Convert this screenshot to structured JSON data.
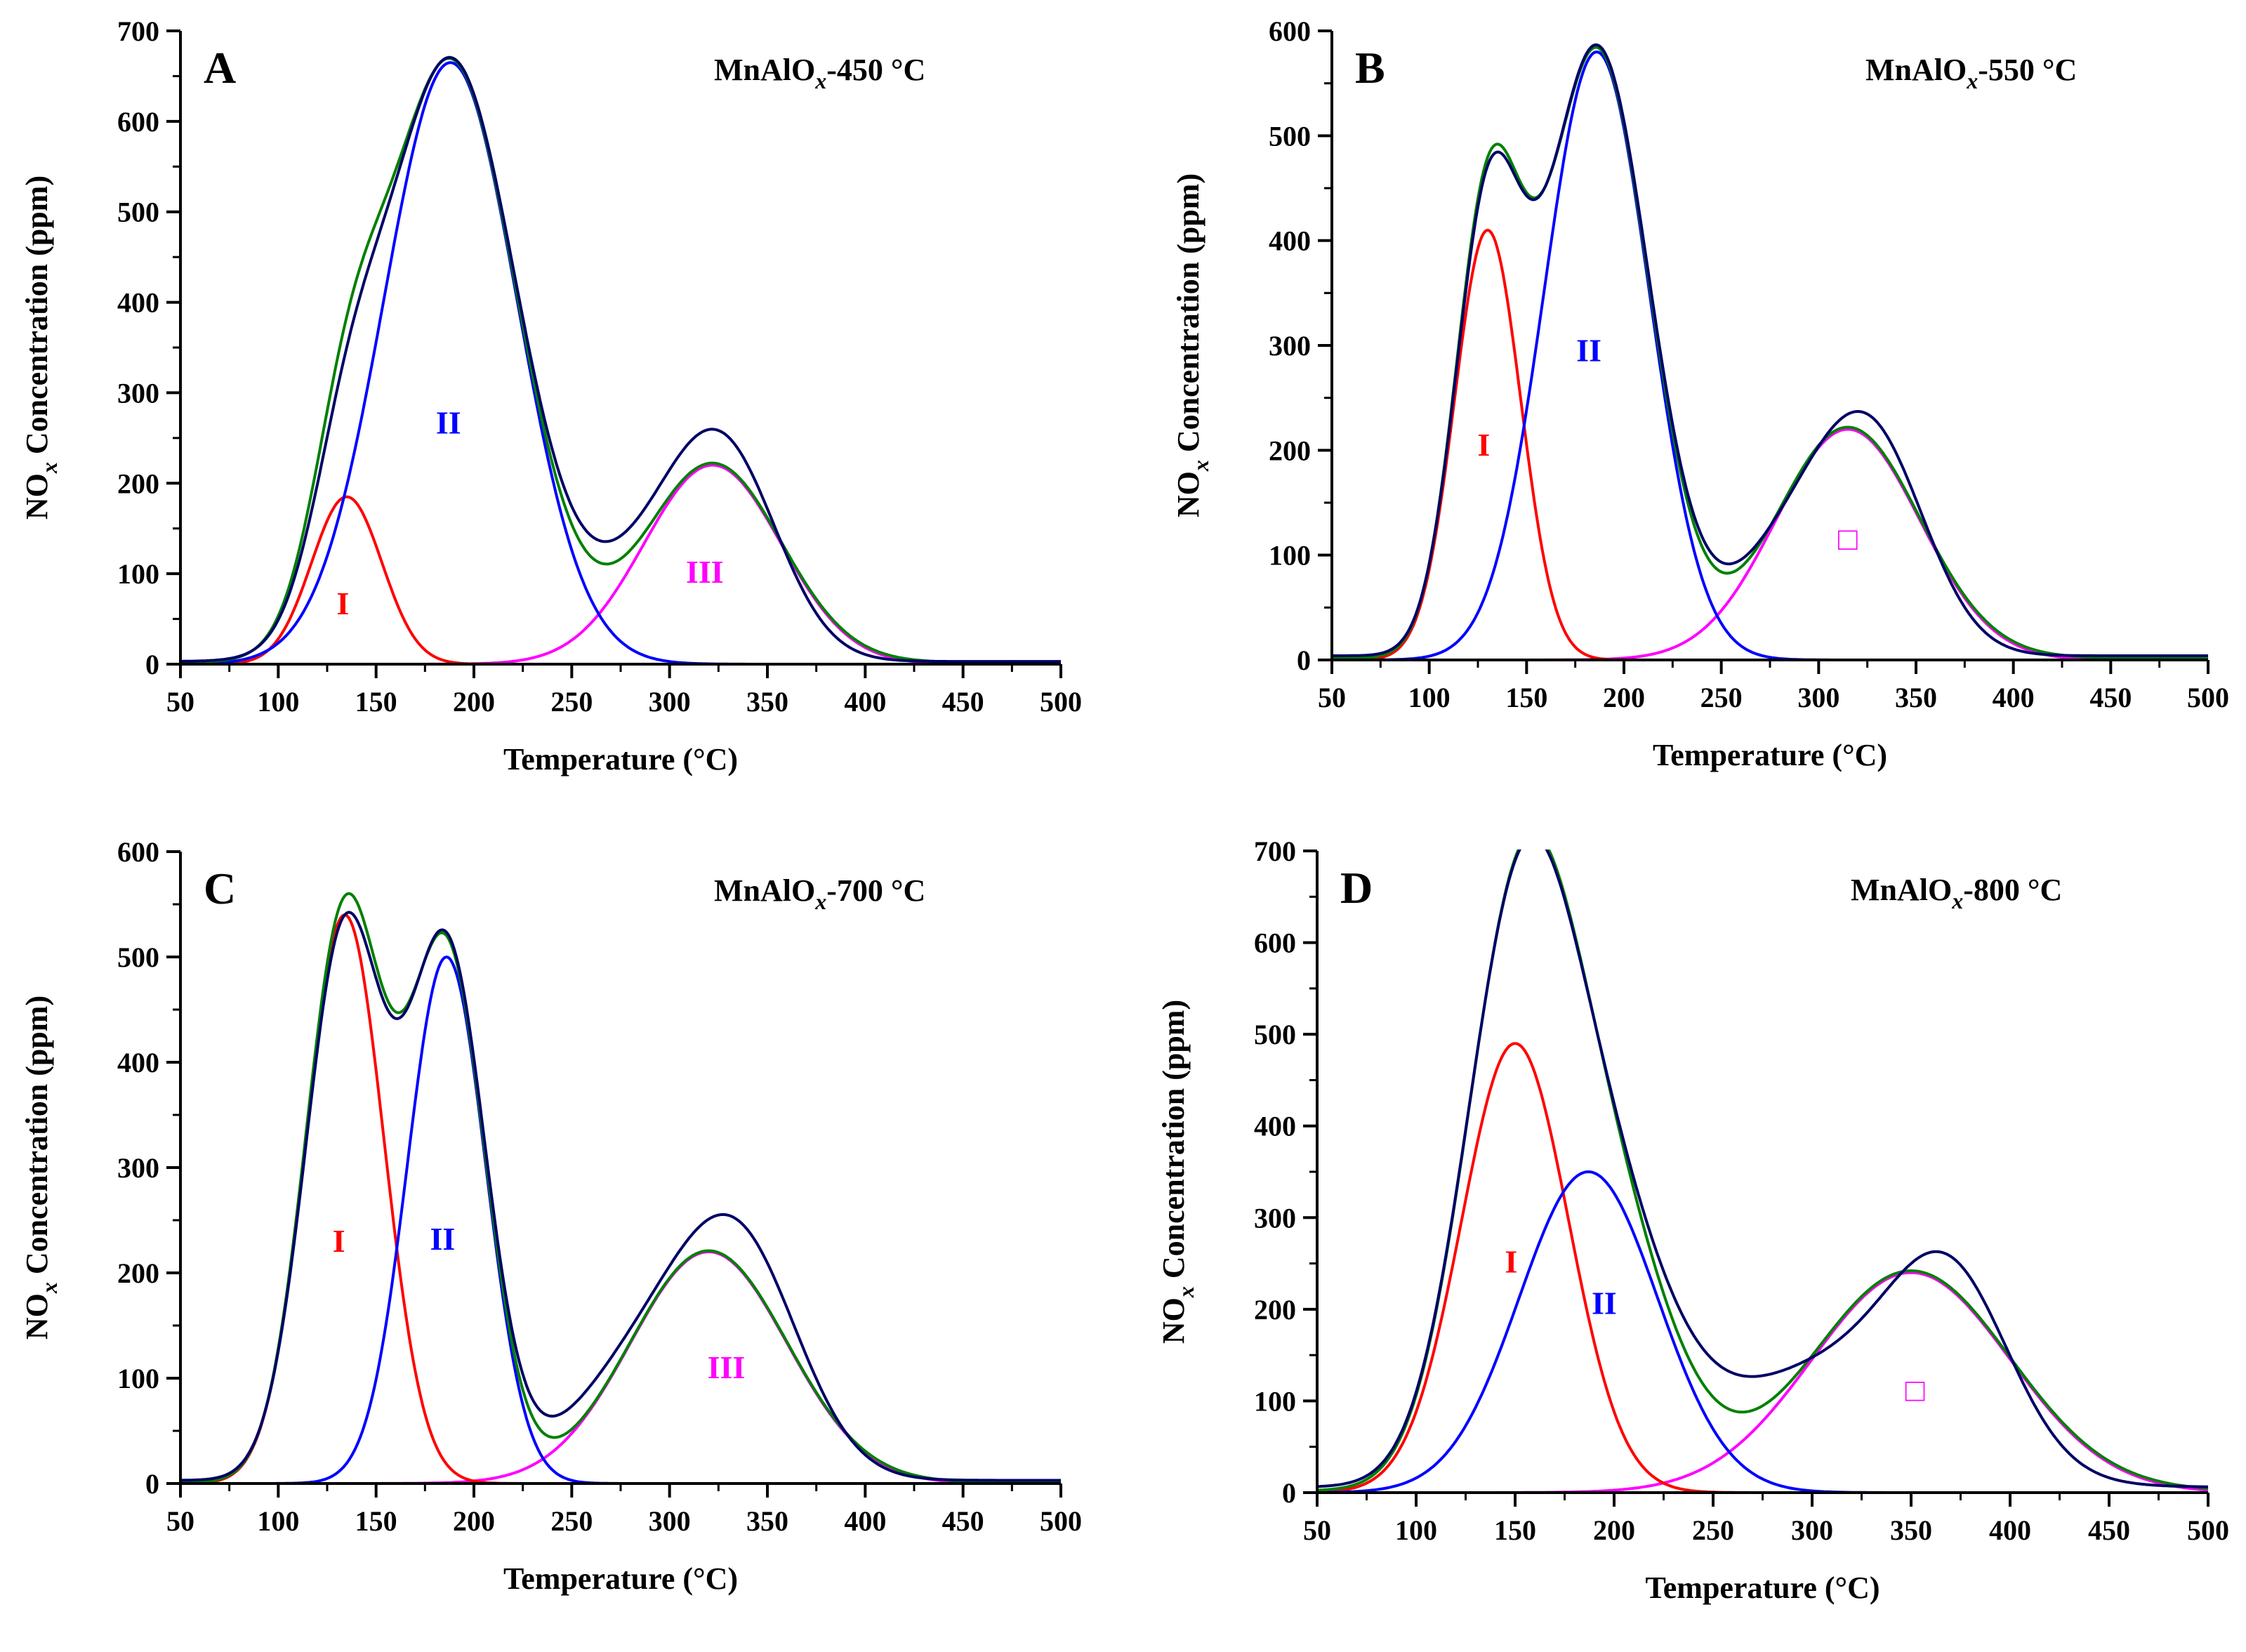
{
  "figure": {
    "x_axis_label": "Temperature (°C)",
    "y_axis_label_pre": "NO",
    "y_axis_label_sub": "x",
    "y_axis_label_post": " Concentration (ppm)",
    "xlim": [
      50,
      500
    ],
    "x_ticks": [
      50,
      100,
      150,
      200,
      250,
      300,
      350,
      400,
      450,
      500
    ],
    "colors": {
      "peak_I": "#ff0000",
      "peak_II": "#0000ff",
      "peak_III": "#ff00ff",
      "fit_sum": "#008000",
      "experimental": "#000066"
    }
  },
  "chart_data": [
    {
      "type": "line",
      "panel": "A",
      "title_pre": "MnAlO",
      "title_sub": "x",
      "title_post": "-450 °C",
      "xlabel": "Temperature (°C)",
      "ylabel": "NOx Concentration (ppm)",
      "ylim": [
        0,
        700
      ],
      "y_ticks": [
        0,
        100,
        200,
        300,
        400,
        500,
        600,
        700
      ],
      "peak_labels": [
        {
          "text": "I",
          "peak": "I",
          "x": 133,
          "y": 55
        },
        {
          "text": "II",
          "peak": "II",
          "x": 187,
          "y": 255
        },
        {
          "text": "III",
          "peak": "III",
          "x": 318,
          "y": 90
        }
      ],
      "series": [
        {
          "name": "Peak I",
          "role": "peak_I",
          "gaussians": [
            {
              "a": 185,
              "c": 135,
              "w": 18
            }
          ]
        },
        {
          "name": "Peak II",
          "role": "peak_II",
          "gaussians": [
            {
              "a": 665,
              "c": 188,
              "w": 34
            }
          ]
        },
        {
          "name": "Peak III",
          "role": "peak_III",
          "gaussians": [
            {
              "a": 220,
              "c": 322,
              "w": 35
            }
          ]
        },
        {
          "name": "Fit sum",
          "role": "fit_sum",
          "baseline": 2,
          "gaussians": [
            {
              "a": 185,
              "c": 135,
              "w": 18
            },
            {
              "a": 665,
              "c": 188,
              "w": 34
            },
            {
              "a": 220,
              "c": 322,
              "w": 35
            }
          ]
        },
        {
          "name": "Experimental",
          "role": "experimental",
          "baseline": 3,
          "gaussians": [
            {
              "a": 150,
              "c": 135,
              "w": 18
            },
            {
              "a": 665,
              "c": 188,
              "w": 34
            },
            {
              "a": 120,
              "c": 300,
              "w": 35
            },
            {
              "a": 165,
              "c": 330,
              "w": 27
            }
          ]
        }
      ]
    },
    {
      "type": "line",
      "panel": "B",
      "title_pre": "MnAlO",
      "title_sub": "x",
      "title_post": "-550 °C",
      "xlabel": "Temperature (°C)",
      "ylabel": "NOx Concentration (ppm)",
      "ylim": [
        0,
        600
      ],
      "y_ticks": [
        0,
        100,
        200,
        300,
        400,
        500,
        600
      ],
      "peak_labels": [
        {
          "text": "I",
          "peak": "I",
          "x": 128,
          "y": 195
        },
        {
          "text": "II",
          "peak": "II",
          "x": 182,
          "y": 285
        },
        {
          "text": "□",
          "peak": "III",
          "x": 315,
          "y": 105
        }
      ],
      "series": [
        {
          "name": "Peak I",
          "role": "peak_I",
          "gaussians": [
            {
              "a": 410,
              "c": 130,
              "w": 17
            }
          ]
        },
        {
          "name": "Peak II",
          "role": "peak_II",
          "gaussians": [
            {
              "a": 580,
              "c": 186,
              "w": 27
            }
          ]
        },
        {
          "name": "Peak III",
          "role": "peak_III",
          "gaussians": [
            {
              "a": 220,
              "c": 315,
              "w": 37
            }
          ]
        },
        {
          "name": "Fit sum",
          "role": "fit_sum",
          "baseline": 2,
          "gaussians": [
            {
              "a": 410,
              "c": 130,
              "w": 17
            },
            {
              "a": 580,
              "c": 186,
              "w": 27
            },
            {
              "a": 220,
              "c": 315,
              "w": 37
            }
          ]
        },
        {
          "name": "Experimental",
          "role": "experimental",
          "baseline": 4,
          "gaussians": [
            {
              "a": 400,
              "c": 130,
              "w": 17
            },
            {
              "a": 580,
              "c": 186,
              "w": 27
            },
            {
              "a": 120,
              "c": 295,
              "w": 35
            },
            {
              "a": 150,
              "c": 330,
              "w": 27
            }
          ]
        }
      ]
    },
    {
      "type": "line",
      "panel": "C",
      "title_pre": "MnAlO",
      "title_sub": "x",
      "title_post": "-700 °C",
      "xlabel": "Temperature (°C)",
      "ylabel": "NOx Concentration (ppm)",
      "ylim": [
        0,
        600
      ],
      "y_ticks": [
        0,
        100,
        200,
        300,
        400,
        500,
        600
      ],
      "peak_labels": [
        {
          "text": "I",
          "peak": "I",
          "x": 131,
          "y": 220
        },
        {
          "text": "II",
          "peak": "II",
          "x": 184,
          "y": 222
        },
        {
          "text": "III",
          "peak": "III",
          "x": 329,
          "y": 100
        }
      ],
      "series": [
        {
          "name": "Peak I",
          "role": "peak_I",
          "gaussians": [
            {
              "a": 540,
              "c": 134,
              "w": 20
            }
          ]
        },
        {
          "name": "Peak II",
          "role": "peak_II",
          "gaussians": [
            {
              "a": 500,
              "c": 186,
              "w": 20
            }
          ]
        },
        {
          "name": "Peak III",
          "role": "peak_III",
          "gaussians": [
            {
              "a": 220,
              "c": 320,
              "w": 40
            }
          ]
        },
        {
          "name": "Fit sum",
          "role": "fit_sum",
          "baseline": 1,
          "gaussians": [
            {
              "a": 540,
              "c": 134,
              "w": 20
            },
            {
              "a": 500,
              "c": 186,
              "w": 20
            },
            {
              "a": 220,
              "c": 320,
              "w": 40
            }
          ]
        },
        {
          "name": "Experimental",
          "role": "experimental",
          "baseline": 3,
          "gaussians": [
            {
              "a": 520,
              "c": 134,
              "w": 20
            },
            {
              "a": 500,
              "c": 186,
              "w": 20
            },
            {
              "a": 130,
              "c": 297,
              "w": 40
            },
            {
              "a": 165,
              "c": 338,
              "w": 30
            }
          ]
        }
      ]
    },
    {
      "type": "line",
      "panel": "D",
      "title_pre": "MnAlO",
      "title_sub": "x",
      "title_post": "-800 °C",
      "xlabel": "Temperature (°C)",
      "ylabel": "NOx Concentration (ppm)",
      "ylim": [
        0,
        700
      ],
      "y_ticks": [
        0,
        100,
        200,
        300,
        400,
        500,
        600,
        700
      ],
      "peak_labels": [
        {
          "text": "I",
          "peak": "I",
          "x": 148,
          "y": 240
        },
        {
          "text": "II",
          "peak": "II",
          "x": 195,
          "y": 195
        },
        {
          "text": "□",
          "peak": "III",
          "x": 352,
          "y": 100
        }
      ],
      "series": [
        {
          "name": "Peak I",
          "role": "peak_I",
          "gaussians": [
            {
              "a": 490,
              "c": 150,
              "w": 27
            }
          ]
        },
        {
          "name": "Peak II",
          "role": "peak_II",
          "gaussians": [
            {
              "a": 350,
              "c": 187,
              "w": 35
            }
          ]
        },
        {
          "name": "Peak III",
          "role": "peak_III",
          "gaussians": [
            {
              "a": 240,
              "c": 350,
              "w": 50
            }
          ]
        },
        {
          "name": "Fit sum",
          "role": "fit_sum",
          "baseline": 2,
          "gaussians": [
            {
              "a": 490,
              "c": 150,
              "w": 27
            },
            {
              "a": 350,
              "c": 187,
              "w": 35
            },
            {
              "a": 240,
              "c": 350,
              "w": 50
            }
          ]
        },
        {
          "name": "Experimental",
          "role": "experimental",
          "baseline": 6,
          "gaussians": [
            {
              "a": 490,
              "c": 150,
              "w": 27
            },
            {
              "a": 335,
              "c": 187,
              "w": 35
            },
            {
              "a": 130,
              "c": 310,
              "w": 55
            },
            {
              "a": 180,
              "c": 370,
              "w": 30
            }
          ]
        }
      ]
    }
  ]
}
